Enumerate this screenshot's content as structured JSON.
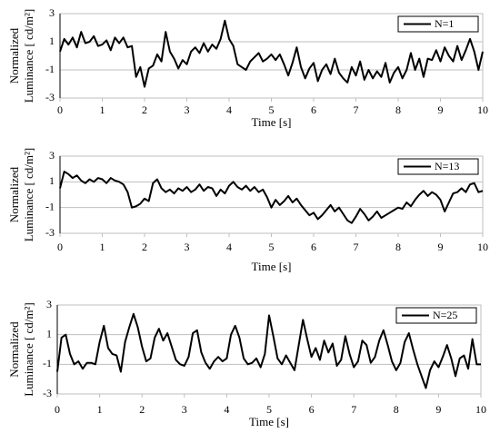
{
  "chart_data": [
    {
      "type": "line",
      "xlabel": "Time [s]",
      "ylabel": [
        "Normalized",
        "Luminance [ cd/m²]"
      ],
      "x": [
        0,
        0.1,
        0.2,
        0.3,
        0.4,
        0.5,
        0.6,
        0.7,
        0.8,
        0.9,
        1,
        1.1,
        1.2,
        1.3,
        1.4,
        1.5,
        1.6,
        1.7,
        1.8,
        1.9,
        2,
        2.1,
        2.2,
        2.3,
        2.4,
        2.5,
        2.6,
        2.7,
        2.8,
        2.9,
        3,
        3.1,
        3.2,
        3.3,
        3.4,
        3.5,
        3.6,
        3.7,
        3.8,
        3.9,
        4,
        4.1,
        4.2,
        4.3,
        4.4,
        4.5,
        4.6,
        4.7,
        4.8,
        4.9,
        5,
        5.1,
        5.2,
        5.3,
        5.4,
        5.5,
        5.6,
        5.7,
        5.8,
        5.9,
        6,
        6.1,
        6.2,
        6.3,
        6.4,
        6.5,
        6.6,
        6.7,
        6.8,
        6.9,
        7,
        7.1,
        7.2,
        7.3,
        7.4,
        7.5,
        7.6,
        7.7,
        7.8,
        7.9,
        8,
        8.1,
        8.2,
        8.3,
        8.4,
        8.5,
        8.6,
        8.7,
        8.8,
        8.9,
        9,
        9.1,
        9.2,
        9.3,
        9.4,
        9.5,
        9.6,
        9.7,
        9.8,
        9.9,
        10
      ],
      "series": [
        {
          "name": "N=1",
          "color": "#000000",
          "values": [
            0.3,
            1.2,
            0.8,
            1.3,
            0.6,
            1.7,
            0.9,
            1.0,
            1.4,
            0.7,
            0.8,
            1.1,
            0.4,
            1.3,
            0.9,
            1.3,
            0.6,
            0.7,
            -1.5,
            -0.8,
            -2.2,
            -0.9,
            -0.7,
            0.1,
            -0.4,
            1.7,
            0.3,
            -0.2,
            -0.9,
            -0.3,
            -0.6,
            0.3,
            0.6,
            0.2,
            0.9,
            0.3,
            0.8,
            0.5,
            1.2,
            2.5,
            1.2,
            0.7,
            -0.6,
            -0.8,
            -1.0,
            -0.4,
            -0.1,
            0.2,
            -0.4,
            -0.2,
            0.1,
            -0.3,
            0.1,
            -0.6,
            -1.4,
            -0.5,
            0.6,
            -0.8,
            -1.6,
            -0.9,
            -0.5,
            -1.8,
            -1.0,
            -0.6,
            -1.3,
            -0.2,
            -1.2,
            -1.6,
            -1.9,
            -0.8,
            -1.4,
            -0.4,
            -1.7,
            -1.0,
            -1.6,
            -1.1,
            -1.5,
            -0.5,
            -1.9,
            -1.2,
            -0.8,
            -1.6,
            -1.0,
            0.2,
            -1.0,
            -0.2,
            -1.5,
            -0.2,
            -0.3,
            0.4,
            -0.4,
            0.6,
            0.0,
            -0.4,
            0.7,
            -0.3,
            0.4,
            1.2,
            0.3,
            -1.0,
            0.3
          ]
        }
      ],
      "xlim": [
        0,
        10
      ],
      "ylim": [
        -3,
        3
      ],
      "xticks": [
        0,
        1,
        2,
        3,
        4,
        5,
        6,
        7,
        8,
        9,
        10
      ],
      "yticks": [
        -3,
        -1,
        1,
        3
      ],
      "grid": true
    },
    {
      "type": "line",
      "xlabel": "Time [s]",
      "ylabel": [
        "Normalized",
        "Luminance [ cd/m²]"
      ],
      "x": [
        0,
        0.1,
        0.2,
        0.3,
        0.4,
        0.5,
        0.6,
        0.7,
        0.8,
        0.9,
        1,
        1.1,
        1.2,
        1.3,
        1.4,
        1.5,
        1.6,
        1.7,
        1.8,
        1.9,
        2,
        2.1,
        2.2,
        2.3,
        2.4,
        2.5,
        2.6,
        2.7,
        2.8,
        2.9,
        3,
        3.1,
        3.2,
        3.3,
        3.4,
        3.5,
        3.6,
        3.7,
        3.8,
        3.9,
        4,
        4.1,
        4.2,
        4.3,
        4.4,
        4.5,
        4.6,
        4.7,
        4.8,
        4.9,
        5,
        5.1,
        5.2,
        5.3,
        5.4,
        5.5,
        5.6,
        5.7,
        5.8,
        5.9,
        6,
        6.1,
        6.2,
        6.3,
        6.4,
        6.5,
        6.6,
        6.7,
        6.8,
        6.9,
        7,
        7.1,
        7.2,
        7.3,
        7.4,
        7.5,
        7.6,
        7.7,
        7.8,
        7.9,
        8,
        8.1,
        8.2,
        8.3,
        8.4,
        8.5,
        8.6,
        8.7,
        8.8,
        8.9,
        9,
        9.1,
        9.2,
        9.3,
        9.4,
        9.5,
        9.6,
        9.7,
        9.8,
        9.9,
        10
      ],
      "series": [
        {
          "name": "N=13",
          "color": "#000000",
          "values": [
            0.5,
            1.8,
            1.6,
            1.3,
            1.5,
            1.1,
            0.9,
            1.2,
            1.0,
            1.3,
            1.2,
            0.9,
            1.3,
            1.1,
            1.0,
            0.8,
            0.2,
            -1.0,
            -0.9,
            -0.7,
            -0.3,
            -0.5,
            0.9,
            1.2,
            0.5,
            0.2,
            0.4,
            0.1,
            0.5,
            0.3,
            0.6,
            0.2,
            0.4,
            0.8,
            0.3,
            0.6,
            0.5,
            -0.1,
            0.4,
            0.1,
            0.7,
            1.0,
            0.6,
            0.4,
            0.7,
            0.3,
            0.6,
            0.2,
            0.4,
            -0.2,
            -1.0,
            -0.4,
            -0.8,
            -0.5,
            -0.1,
            -0.6,
            -0.3,
            -0.8,
            -1.2,
            -1.6,
            -1.4,
            -1.9,
            -1.6,
            -1.2,
            -0.8,
            -1.3,
            -1.0,
            -1.5,
            -2.0,
            -2.2,
            -1.7,
            -1.1,
            -1.5,
            -2.0,
            -1.7,
            -1.3,
            -1.8,
            -1.6,
            -1.4,
            -1.2,
            -1.0,
            -1.1,
            -0.6,
            -0.9,
            -0.4,
            0.0,
            0.3,
            -0.1,
            0.2,
            0.0,
            -0.4,
            -1.3,
            -0.6,
            0.1,
            0.2,
            0.5,
            0.2,
            0.8,
            0.9,
            0.2,
            0.3
          ]
        }
      ],
      "xlim": [
        0,
        10
      ],
      "ylim": [
        -3,
        3
      ],
      "xticks": [
        0,
        1,
        2,
        3,
        4,
        5,
        6,
        7,
        8,
        9,
        10
      ],
      "yticks": [
        -3,
        -1,
        1,
        3
      ],
      "grid": true
    },
    {
      "type": "line",
      "xlabel": "Time [s]",
      "ylabel": [
        "Normalized",
        "Luminance [ cd/m²]"
      ],
      "x": [
        0,
        0.1,
        0.2,
        0.3,
        0.4,
        0.5,
        0.6,
        0.7,
        0.8,
        0.9,
        1,
        1.1,
        1.2,
        1.3,
        1.4,
        1.5,
        1.6,
        1.7,
        1.8,
        1.9,
        2,
        2.1,
        2.2,
        2.3,
        2.4,
        2.5,
        2.6,
        2.7,
        2.8,
        2.9,
        3,
        3.1,
        3.2,
        3.3,
        3.4,
        3.5,
        3.6,
        3.7,
        3.8,
        3.9,
        4,
        4.1,
        4.2,
        4.3,
        4.4,
        4.5,
        4.6,
        4.7,
        4.8,
        4.9,
        5,
        5.1,
        5.2,
        5.3,
        5.4,
        5.5,
        5.6,
        5.7,
        5.8,
        5.9,
        6,
        6.1,
        6.2,
        6.3,
        6.4,
        6.5,
        6.6,
        6.7,
        6.8,
        6.9,
        7,
        7.1,
        7.2,
        7.3,
        7.4,
        7.5,
        7.6,
        7.7,
        7.8,
        7.9,
        8,
        8.1,
        8.2,
        8.3,
        8.4,
        8.5,
        8.6,
        8.7,
        8.8,
        8.9,
        9,
        9.1,
        9.2,
        9.3,
        9.4,
        9.5,
        9.6,
        9.7,
        9.8,
        9.9,
        10
      ],
      "series": [
        {
          "name": "N=25",
          "color": "#000000",
          "values": [
            -1.5,
            0.8,
            1.0,
            -0.3,
            -1.0,
            -0.8,
            -1.3,
            -0.9,
            -0.9,
            -1.0,
            0.5,
            1.6,
            0.1,
            -0.3,
            -0.4,
            -1.5,
            0.5,
            1.5,
            2.4,
            1.5,
            0.2,
            -0.8,
            -0.6,
            0.8,
            1.4,
            0.6,
            1.1,
            0.2,
            -0.7,
            -1.0,
            -1.1,
            -0.5,
            1.1,
            1.3,
            -0.2,
            -0.9,
            -1.3,
            -0.8,
            -0.5,
            -0.8,
            -0.6,
            1.0,
            1.6,
            0.8,
            -0.6,
            -1.0,
            -0.9,
            -0.6,
            -1.2,
            -0.3,
            2.3,
            0.9,
            -0.6,
            -1.0,
            -0.4,
            -0.9,
            -1.4,
            0.3,
            2.0,
            0.7,
            -0.5,
            0.1,
            -0.7,
            0.6,
            -0.2,
            0.4,
            -1.1,
            -0.7,
            0.9,
            -0.3,
            -1.2,
            -0.8,
            0.6,
            0.3,
            -0.9,
            -0.5,
            0.6,
            1.3,
            0.3,
            -0.8,
            -1.4,
            -0.9,
            0.5,
            1.1,
            0.0,
            -1.0,
            -1.8,
            -2.6,
            -1.4,
            -0.8,
            -1.2,
            -0.5,
            0.3,
            -0.6,
            -1.8,
            -0.6,
            -0.4,
            -1.3,
            0.7,
            -1.0,
            -1.0
          ]
        }
      ],
      "xlim": [
        0,
        10
      ],
      "ylim": [
        -3,
        3
      ],
      "xticks": [
        0,
        1,
        2,
        3,
        4,
        5,
        6,
        7,
        8,
        9,
        10
      ],
      "yticks": [
        -3,
        -1,
        1,
        3
      ],
      "grid": true
    }
  ]
}
